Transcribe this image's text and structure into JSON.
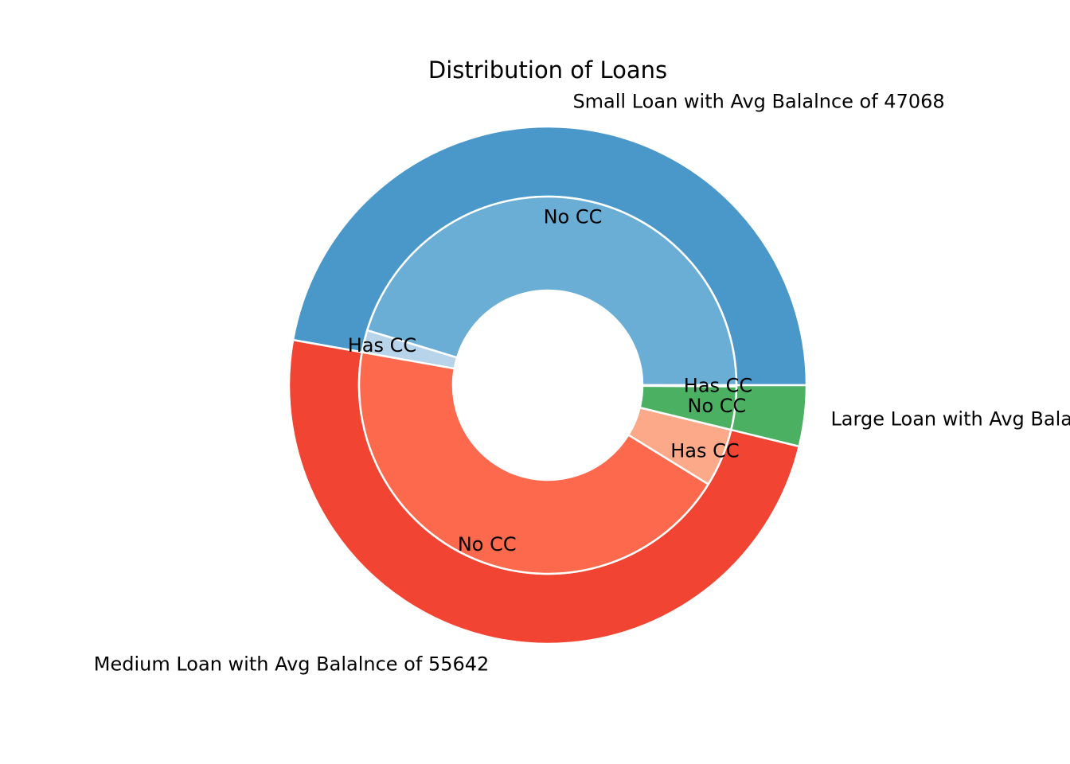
{
  "chart_data": {
    "type": "pie",
    "variant": "nested-donut",
    "title": "Distribution of Loans",
    "outer_ring": {
      "labels": [
        "Small Loan with Avg Balalnce of 47068",
        "Medium Loan with Avg Balalnce of 55642",
        "Large Loan with Avg Balalnce of"
      ],
      "values": [
        47.2,
        49.0,
        3.8
      ],
      "colors": [
        "#4a98c9",
        "#f14432",
        "#4bb062"
      ]
    },
    "inner_ring": {
      "groups": [
        "Small Loan",
        "Small Loan",
        "Medium Loan",
        "Medium Loan",
        "Large Loan",
        "Large Loan"
      ],
      "labels": [
        "No CC",
        "Has CC",
        "No CC",
        "Has CC",
        "No CC",
        "Has CC"
      ],
      "values": [
        45.3,
        1.9,
        44.0,
        5.0,
        3.7,
        0.1
      ],
      "colors": [
        "#6aaed6",
        "#b7d4ea",
        "#fc694c",
        "#fca98a",
        "#4bb062",
        "#a1d99b"
      ]
    },
    "start_angle_deg": 0,
    "direction": "counterclockwise"
  }
}
